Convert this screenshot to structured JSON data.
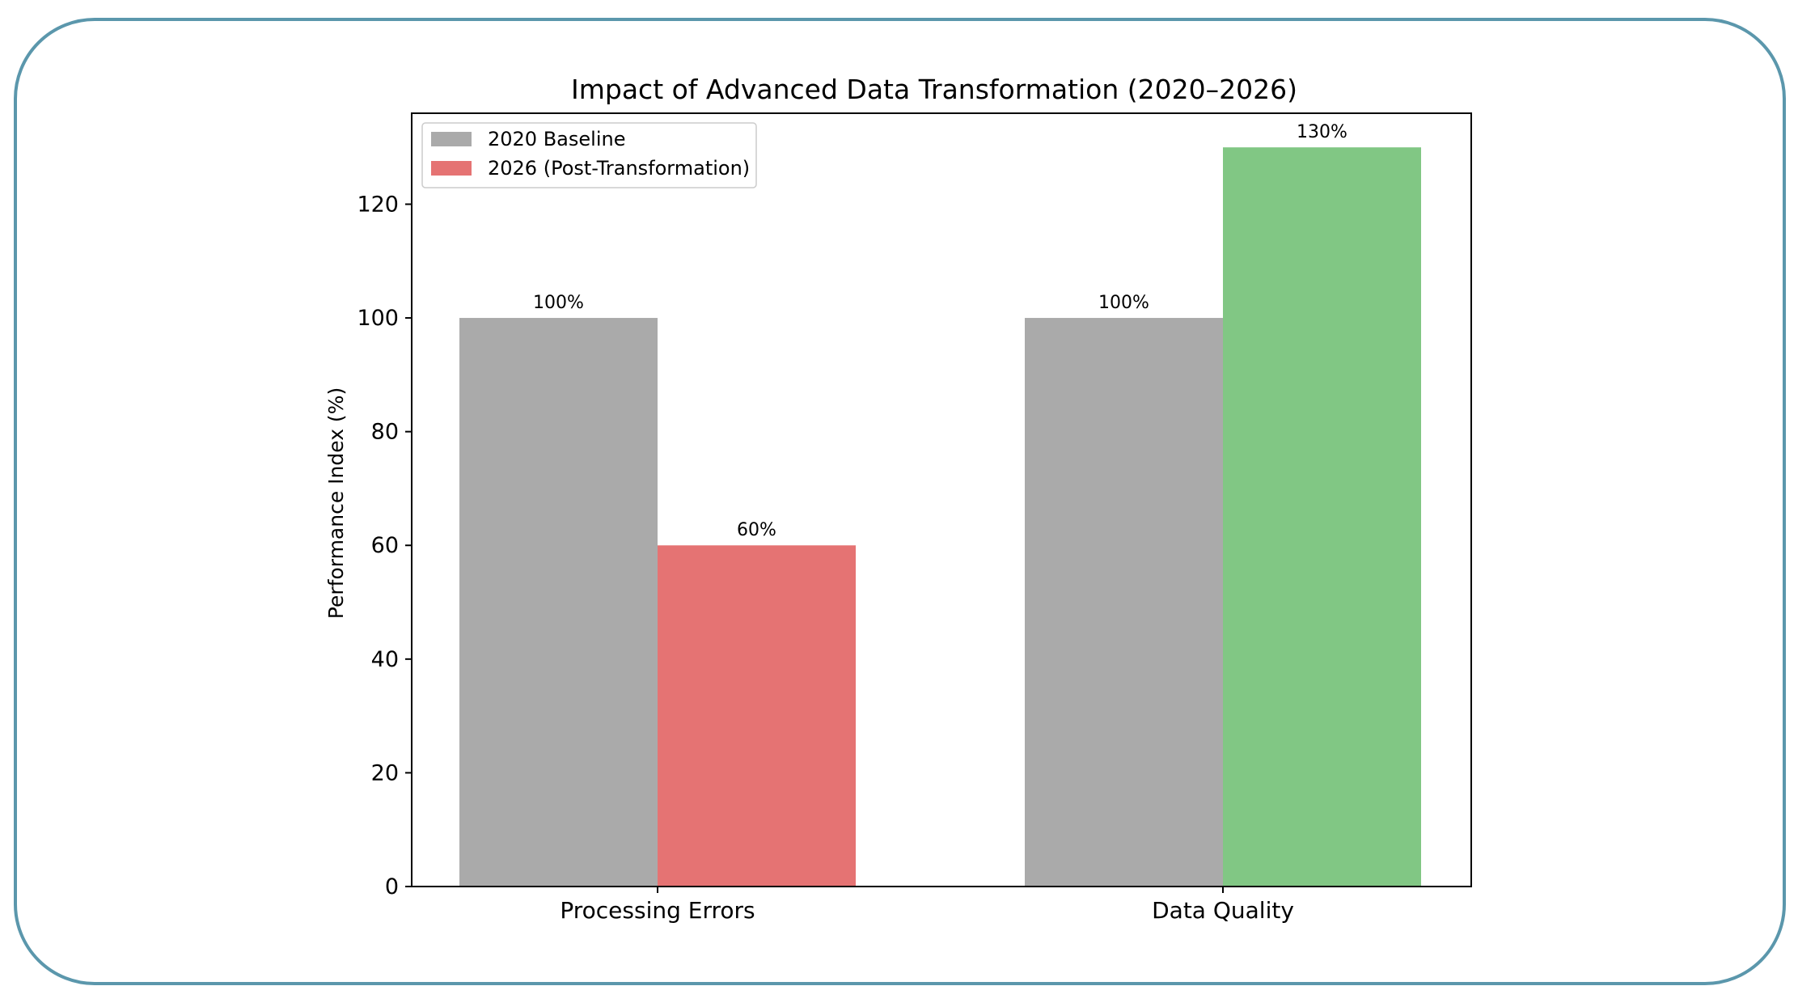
{
  "chart_data": {
    "type": "bar",
    "title": "Impact of Advanced Data Transformation (2020–2026)",
    "xlabel": "",
    "ylabel": "Performance Index (%)",
    "ylim": [
      0,
      136
    ],
    "yticks": [
      0,
      20,
      40,
      60,
      80,
      100,
      120
    ],
    "categories": [
      "Processing Errors",
      "Data Quality"
    ],
    "series": [
      {
        "name": "2020 Baseline",
        "values": [
          100,
          100
        ],
        "color": "#aaaaaa",
        "labels": [
          "100%",
          "100%"
        ]
      },
      {
        "name": "2026 (Post-Transformation)",
        "values": [
          60,
          130
        ],
        "colors": [
          "#e57373",
          "#81c784"
        ],
        "labels": [
          "60%",
          "130%"
        ]
      }
    ],
    "legend": {
      "position": "upper-left",
      "entries": [
        {
          "label": "2020 Baseline",
          "color": "#aaaaaa"
        },
        {
          "label": "2026 (Post-Transformation)",
          "color": "#e57373"
        }
      ]
    },
    "grid": false
  }
}
